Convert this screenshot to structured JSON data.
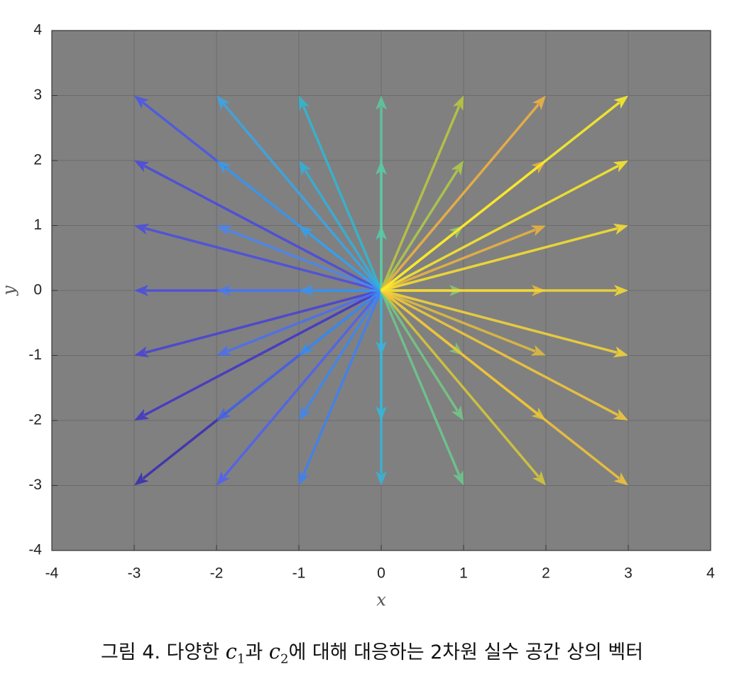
{
  "chart_data": {
    "type": "quiver",
    "xlabel": "x",
    "ylabel": "y",
    "xlim": [
      -4,
      4
    ],
    "ylim": [
      -4,
      4
    ],
    "xticks": [
      -4,
      -3,
      -2,
      -1,
      0,
      1,
      2,
      3,
      4
    ],
    "yticks": [
      -4,
      -3,
      -2,
      -1,
      0,
      1,
      2,
      3,
      4
    ],
    "grid": true,
    "background": "#808080",
    "origin_x": 0,
    "origin_y": 0,
    "u": [
      -3,
      -3,
      -3,
      -3,
      -3,
      -3,
      -3,
      -2,
      -2,
      -2,
      -2,
      -2,
      -2,
      -2,
      -1,
      -1,
      -1,
      -1,
      -1,
      -1,
      -1,
      0,
      0,
      0,
      0,
      0,
      0,
      1,
      1,
      1,
      1,
      1,
      1,
      1,
      2,
      2,
      2,
      2,
      2,
      2,
      2,
      3,
      3,
      3,
      3,
      3,
      3,
      3
    ],
    "v": [
      -3,
      -2,
      -1,
      0,
      1,
      2,
      3,
      -3,
      -2,
      -1,
      0,
      1,
      2,
      3,
      -3,
      -2,
      -1,
      0,
      1,
      2,
      3,
      -3,
      -2,
      -1,
      1,
      2,
      3,
      -3,
      -2,
      -1,
      0,
      1,
      2,
      3,
      -3,
      -2,
      -1,
      0,
      1,
      2,
      3,
      -3,
      -2,
      -1,
      0,
      1,
      2,
      3
    ],
    "colors": [
      "#3a2fb0",
      "#4236c8",
      "#4a42d6",
      "#4a4ee0",
      "#4c4ee0",
      "#4a4ae0",
      "#4a58e8",
      "#4f62f0",
      "#4868e8",
      "#4a6ff0",
      "#4a7cf0",
      "#4a86f5",
      "#3a9de8",
      "#3aa6e8",
      "#3f80f2",
      "#3f86f2",
      "#3a8ef0",
      "#3a95ee",
      "#3aa0e8",
      "#33b0dc",
      "#2fb8d4",
      "#36b6d8",
      "#35b8d8",
      "#3ab4da",
      "#55c8b0",
      "#5acaa8",
      "#5ec8a0",
      "#6cc88e",
      "#74c886",
      "#80c87a",
      "#86c87a",
      "#98c868",
      "#b0cc48",
      "#bcc840",
      "#d6c83a",
      "#dcc43a",
      "#e0bc40",
      "#e8bc3a",
      "#ecb440",
      "#f0b43c",
      "#f0b440",
      "#f2c43a",
      "#f4c83a",
      "#f4d438",
      "#f6dc34",
      "#f8e030",
      "#fae82c",
      "#faf028"
    ]
  },
  "caption": {
    "prefix": "그림 4. 다양한 ",
    "var1": "c",
    "sub1": "1",
    "mid": "과 ",
    "var2": "c",
    "sub2": "2",
    "suffix": "에 대해 대응하는 2차원 실수 공간 상의 벡터"
  }
}
